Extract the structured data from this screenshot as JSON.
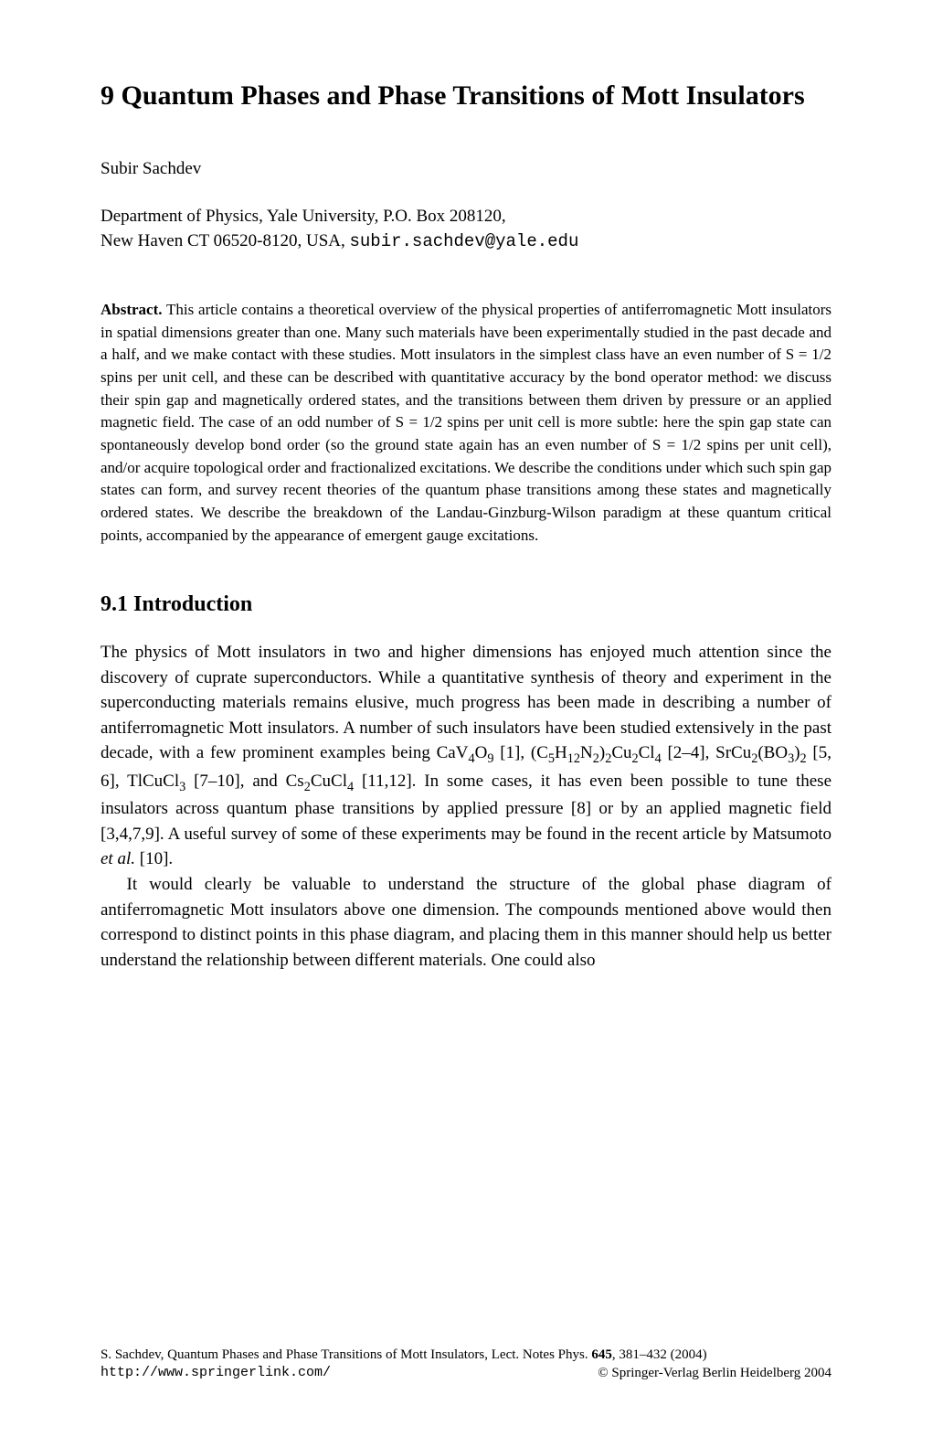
{
  "title": "9 Quantum Phases and Phase Transitions of Mott Insulators",
  "author": "Subir Sachdev",
  "affiliation_line1": "Department of Physics, Yale University, P.O. Box 208120,",
  "affiliation_line2": "New Haven CT 06520-8120, USA, ",
  "email": "subir.sachdev@yale.edu",
  "abstract_label": "Abstract.",
  "abstract_text": " This article contains a theoretical overview of the physical properties of antiferromagnetic Mott insulators in spatial dimensions greater than one. Many such materials have been experimentally studied in the past decade and a half, and we make contact with these studies. Mott insulators in the simplest class have an even number of S = 1/2 spins per unit cell, and these can be described with quantitative accuracy by the bond operator method: we discuss their spin gap and magnetically ordered states, and the transitions between them driven by pressure or an applied magnetic field. The case of an odd number of S = 1/2 spins per unit cell is more subtle: here the spin gap state can spontaneously develop bond order (so the ground state again has an even number of S = 1/2 spins per unit cell), and/or acquire topological order and fractionalized excitations. We describe the conditions under which such spin gap states can form, and survey recent theories of the quantum phase transitions among these states and magnetically ordered states. We describe the breakdown of the Landau-Ginzburg-Wilson paradigm at these quantum critical points, accompanied by the appearance of emergent gauge excitations.",
  "section_heading": "9.1 Introduction",
  "paragraph1_pre": "The physics of Mott insulators in two and higher dimensions has enjoyed much attention since the discovery of cuprate superconductors. While a quantitative synthesis of theory and experiment in the superconducting materials remains elusive, much progress has been made in describing a number of antiferromagnetic Mott insulators. A number of such insulators have been studied extensively in the past decade, with a few prominent examples being CaV",
  "paragraph1_mid1": "O",
  "paragraph1_mid2": " [1], (C",
  "paragraph1_mid3": "H",
  "paragraph1_mid4": "N",
  "paragraph1_mid5": ")",
  "paragraph1_mid6": "Cu",
  "paragraph1_mid7": "Cl",
  "paragraph1_mid8": " [2–4], SrCu",
  "paragraph1_mid9": "(BO",
  "paragraph1_mid10": ")",
  "paragraph1_mid11": " [5, 6], TlCuCl",
  "paragraph1_mid12": " [7–10], and Cs",
  "paragraph1_mid13": "CuCl",
  "paragraph1_post": " [11,12]. In some cases, it has even been possible to tune these insulators across quantum phase transitions by applied pressure [8] or by an applied magnetic field [3,4,7,9]. A useful survey of some of these experiments may be found in the recent article by Matsumoto ",
  "paragraph1_etal": "et al.",
  "paragraph1_end": " [10].",
  "paragraph2": "It would clearly be valuable to understand the structure of the global phase diagram of antiferromagnetic Mott insulators above one dimension. The compounds mentioned above would then correspond to distinct points in this phase diagram, and placing them in this manner should help us better understand the relationship between different materials. One could also",
  "footer_citation_pre": "S. Sachdev, Quantum Phases and Phase Transitions of Mott Insulators, Lect. Notes Phys. ",
  "footer_volume": "645",
  "footer_pages": ", 381–432 (2004)",
  "footer_url": "http://www.springerlink.com/",
  "footer_copyright": "© Springer-Verlag Berlin Heidelberg 2004",
  "subscripts": {
    "s4": "4",
    "s9": "9",
    "s5": "5",
    "s12": "12",
    "s2": "2",
    "s3": "3"
  }
}
